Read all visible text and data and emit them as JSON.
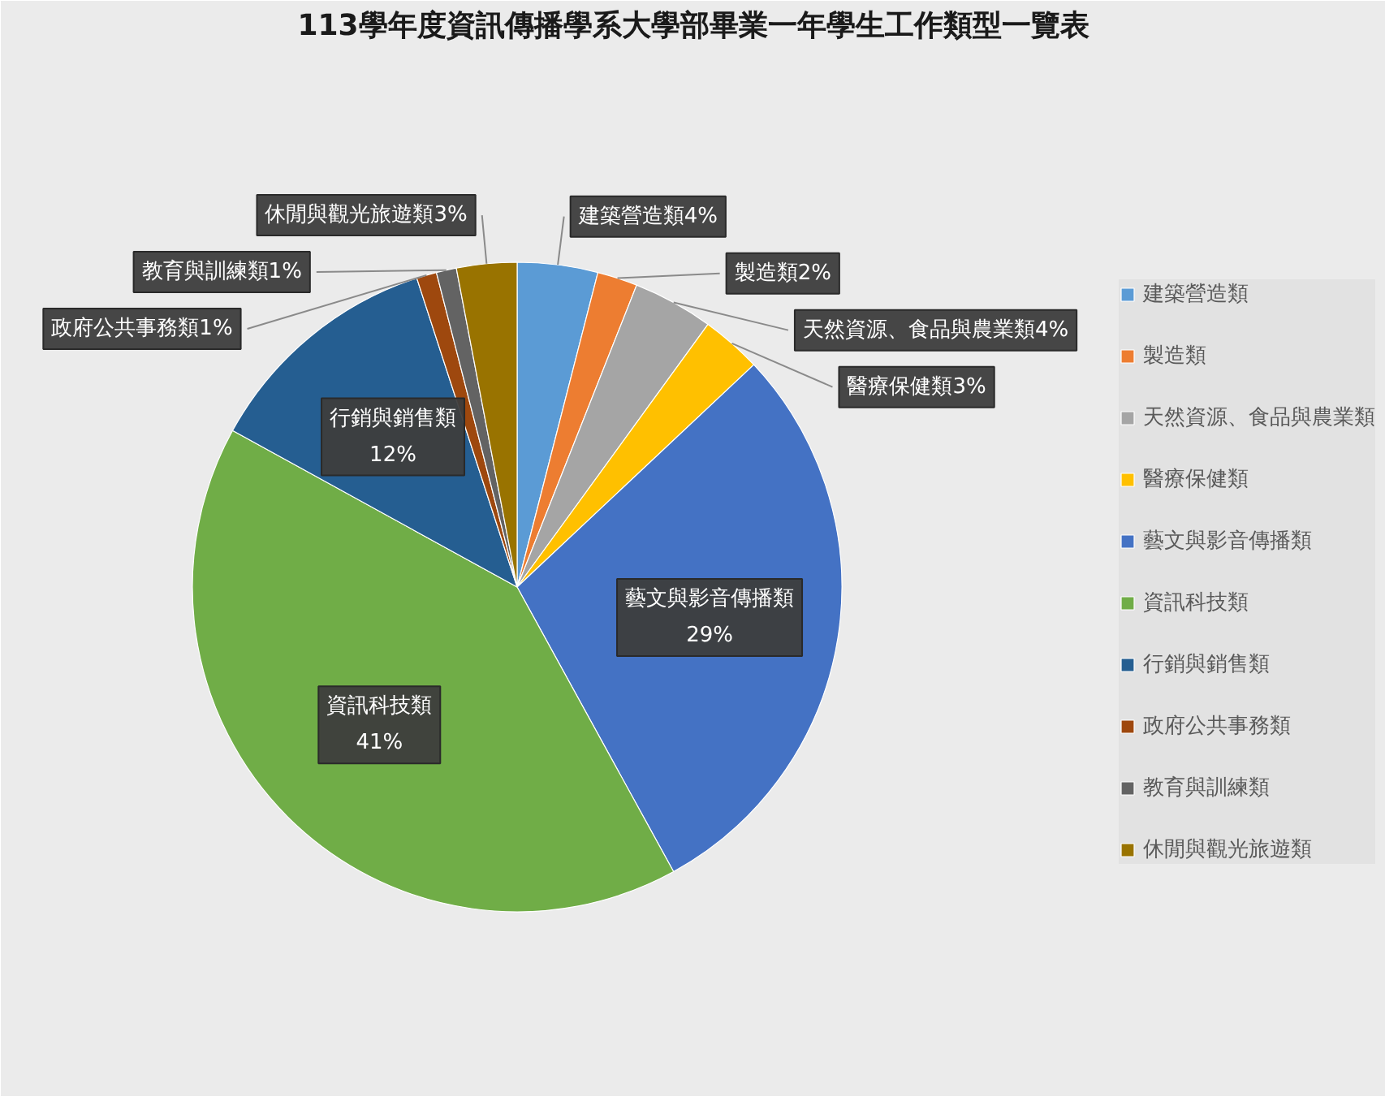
{
  "chart_data": {
    "type": "pie",
    "title": "113學年度資訊傳播學系大學部畢業一年學生工作類型一覽表",
    "categories": [
      "建築營造類",
      "製造類",
      "天然資源、食品與農業類",
      "醫療保健類",
      "藝文與影音傳播類",
      "資訊科技類",
      "行銷與銷售類",
      "政府公共事務類",
      "教育與訓練類",
      "休閒與觀光旅遊類"
    ],
    "values": [
      4,
      2,
      4,
      3,
      29,
      41,
      12,
      1,
      1,
      3
    ],
    "colors": [
      "#5b9bd5",
      "#ed7d31",
      "#a5a5a5",
      "#ffc000",
      "#4472c4",
      "#70ad47",
      "#255e91",
      "#9e480e",
      "#636363",
      "#997300"
    ],
    "value_labels": [
      "建築營造類4%",
      "製造類2%",
      "天然資源、食品與農業類4%",
      "醫療保健類3%",
      "藝文與影音傳播類\n29%",
      "資訊科技類\n41%",
      "行銷與銷售類\n12%",
      "政府公共事務類1%",
      "教育與訓練類1%",
      "休閒與觀光旅遊類3%"
    ],
    "legend": "right"
  }
}
